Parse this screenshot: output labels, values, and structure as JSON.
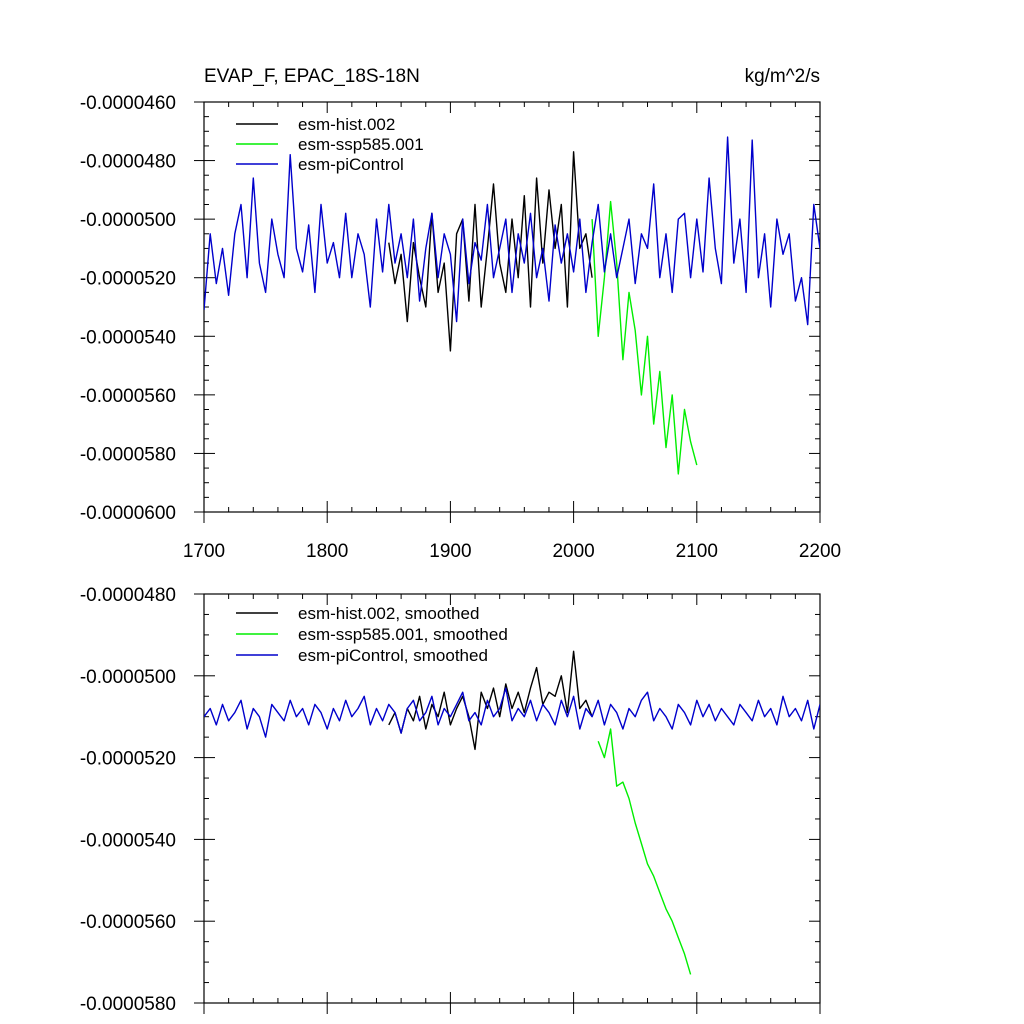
{
  "colors": {
    "hist": "#000000",
    "ssp": "#00ee00",
    "pi": "#0000cc"
  },
  "chart_data": [
    {
      "type": "line",
      "title": "EVAP_F, EPAC_18S-18N",
      "units_label": "kg/m^2/s",
      "xlim": [
        1700,
        2200
      ],
      "ylim": [
        -6e-05,
        -4.6e-05
      ],
      "xticks": [
        1700,
        1800,
        1900,
        2000,
        2100,
        2200
      ],
      "xtick_labels": [
        "1700",
        "1800",
        "1900",
        "2000",
        "2100",
        "2200"
      ],
      "yticks": [
        -4.6e-05,
        -4.8e-05,
        -5e-05,
        -5.2e-05,
        -5.4e-05,
        -5.6e-05,
        -5.8e-05,
        -6e-05
      ],
      "ytick_labels": [
        "-0.0000460",
        "-0.0000480",
        "-0.0000500",
        "-0.0000520",
        "-0.0000540",
        "-0.0000560",
        "-0.0000580",
        "-0.0000600"
      ],
      "legend_position": "top-left",
      "grid": false,
      "series": [
        {
          "name": "esm-hist.002",
          "color": "#000000",
          "x_start": 1850,
          "x_step": 5,
          "values": [
            -5.08e-05,
            -5.22e-05,
            -5.12e-05,
            -5.35e-05,
            -5.08e-05,
            -5.2e-05,
            -5.3e-05,
            -4.98e-05,
            -5.25e-05,
            -5.15e-05,
            -5.45e-05,
            -5.05e-05,
            -5e-05,
            -5.28e-05,
            -4.95e-05,
            -5.3e-05,
            -5.1e-05,
            -4.88e-05,
            -5.15e-05,
            -5.25e-05,
            -5e-05,
            -5.2e-05,
            -4.92e-05,
            -5.3e-05,
            -4.86e-05,
            -5.15e-05,
            -4.9e-05,
            -5.1e-05,
            -4.95e-05,
            -5.3e-05,
            -4.77e-05,
            -5.1e-05,
            -5.05e-05,
            -5.2e-05
          ]
        },
        {
          "name": "esm-ssp585.001",
          "color": "#00ee00",
          "x_start": 2015,
          "x_step": 5,
          "values": [
            -5e-05,
            -5.4e-05,
            -5.2e-05,
            -4.94e-05,
            -5.15e-05,
            -5.48e-05,
            -5.25e-05,
            -5.38e-05,
            -5.6e-05,
            -5.4e-05,
            -5.7e-05,
            -5.52e-05,
            -5.78e-05,
            -5.6e-05,
            -5.87e-05,
            -5.65e-05,
            -5.76e-05,
            -5.84e-05
          ]
        },
        {
          "name": "esm-piControl",
          "color": "#0000cc",
          "x_start": 1700,
          "x_step": 5,
          "values": [
            -5.31e-05,
            -5.05e-05,
            -5.22e-05,
            -5.1e-05,
            -5.26e-05,
            -5.05e-05,
            -4.95e-05,
            -5.2e-05,
            -4.86e-05,
            -5.15e-05,
            -5.25e-05,
            -5e-05,
            -5.12e-05,
            -5.2e-05,
            -4.78e-05,
            -5.1e-05,
            -5.18e-05,
            -5.02e-05,
            -5.25e-05,
            -4.95e-05,
            -5.15e-05,
            -5.08e-05,
            -5.2e-05,
            -4.98e-05,
            -5.2e-05,
            -5.05e-05,
            -5.12e-05,
            -5.3e-05,
            -5e-05,
            -5.18e-05,
            -4.95e-05,
            -5.15e-05,
            -5.05e-05,
            -5.2e-05,
            -5e-05,
            -5.28e-05,
            -5.1e-05,
            -4.98e-05,
            -5.2e-05,
            -5.05e-05,
            -5.12e-05,
            -5.35e-05,
            -5e-05,
            -5.22e-05,
            -5.08e-05,
            -5.14e-05,
            -4.95e-05,
            -5.2e-05,
            -5.1e-05,
            -5e-05,
            -5.25e-05,
            -5.05e-05,
            -5.15e-05,
            -4.98e-05,
            -5.2e-05,
            -5.1e-05,
            -5.28e-05,
            -5.02e-05,
            -5.15e-05,
            -5.05e-05,
            -5.18e-05,
            -5e-05,
            -5.25e-05,
            -5.08e-05,
            -4.95e-05,
            -5.18e-05,
            -5.05e-05,
            -5.2e-05,
            -5.1e-05,
            -5e-05,
            -5.22e-05,
            -5.05e-05,
            -5.1e-05,
            -4.88e-05,
            -5.2e-05,
            -5.05e-05,
            -5.25e-05,
            -5e-05,
            -4.98e-05,
            -5.2e-05,
            -5e-05,
            -5.18e-05,
            -4.86e-05,
            -5.1e-05,
            -5.22e-05,
            -4.72e-05,
            -5.15e-05,
            -5e-05,
            -5.25e-05,
            -4.73e-05,
            -5.2e-05,
            -5.05e-05,
            -5.3e-05,
            -5e-05,
            -5.12e-05,
            -5.05e-05,
            -5.28e-05,
            -5.2e-05,
            -5.36e-05,
            -4.95e-05,
            -5.1e-05
          ]
        }
      ]
    },
    {
      "type": "line",
      "title": "",
      "xlim": [
        1700,
        2200
      ],
      "ylim": [
        -5.8e-05,
        -4.8e-05
      ],
      "xticks": [
        1700,
        1800,
        1900,
        2000,
        2100,
        2200
      ],
      "yticks": [
        -4.8e-05,
        -5e-05,
        -5.2e-05,
        -5.4e-05,
        -5.6e-05,
        -5.8e-05
      ],
      "ytick_labels": [
        "-0.0000480",
        "-0.0000500",
        "-0.0000520",
        "-0.0000540",
        "-0.0000560",
        "-0.0000580"
      ],
      "legend_position": "top-left",
      "grid": false,
      "series": [
        {
          "name": "esm-hist.002, smoothed",
          "color": "#000000",
          "x_start": 1850,
          "x_step": 5,
          "values": [
            -5.12e-05,
            -5.09e-05,
            -5.14e-05,
            -5.08e-05,
            -5.11e-05,
            -5.05e-05,
            -5.13e-05,
            -5.07e-05,
            -5.1e-05,
            -5.04e-05,
            -5.12e-05,
            -5.08e-05,
            -5.05e-05,
            -5.1e-05,
            -5.18e-05,
            -5.04e-05,
            -5.08e-05,
            -5.03e-05,
            -5.1e-05,
            -5.02e-05,
            -5.08e-05,
            -5.04e-05,
            -5.09e-05,
            -5.03e-05,
            -4.98e-05,
            -5.07e-05,
            -5.04e-05,
            -5.05e-05,
            -5e-05,
            -5.09e-05,
            -4.94e-05,
            -5.08e-05,
            -5.06e-05,
            -5.1e-05
          ]
        },
        {
          "name": "esm-ssp585.001, smoothed",
          "color": "#00ee00",
          "x_start": 2020,
          "x_step": 5,
          "values": [
            -5.16e-05,
            -5.2e-05,
            -5.13e-05,
            -5.27e-05,
            -5.26e-05,
            -5.3e-05,
            -5.36e-05,
            -5.41e-05,
            -5.46e-05,
            -5.49e-05,
            -5.53e-05,
            -5.57e-05,
            -5.6e-05,
            -5.64e-05,
            -5.68e-05,
            -5.73e-05
          ]
        },
        {
          "name": "esm-piControl, smoothed",
          "color": "#0000cc",
          "x_start": 1700,
          "x_step": 5,
          "values": [
            -5.1e-05,
            -5.08e-05,
            -5.12e-05,
            -5.07e-05,
            -5.11e-05,
            -5.09e-05,
            -5.06e-05,
            -5.13e-05,
            -5.08e-05,
            -5.1e-05,
            -5.15e-05,
            -5.07e-05,
            -5.09e-05,
            -5.11e-05,
            -5.06e-05,
            -5.1e-05,
            -5.08e-05,
            -5.12e-05,
            -5.07e-05,
            -5.09e-05,
            -5.13e-05,
            -5.08e-05,
            -5.11e-05,
            -5.06e-05,
            -5.1e-05,
            -5.08e-05,
            -5.05e-05,
            -5.12e-05,
            -5.08e-05,
            -5.11e-05,
            -5.07e-05,
            -5.09e-05,
            -5.14e-05,
            -5.08e-05,
            -5.06e-05,
            -5.11e-05,
            -5.09e-05,
            -5.05e-05,
            -5.12e-05,
            -5.08e-05,
            -5.1e-05,
            -5.07e-05,
            -5.04e-05,
            -5.11e-05,
            -5.09e-05,
            -5.12e-05,
            -5.06e-05,
            -5.1e-05,
            -5.08e-05,
            -5.03e-05,
            -5.11e-05,
            -5.08e-05,
            -5.1e-05,
            -5.06e-05,
            -5.11e-05,
            -5.07e-05,
            -5.09e-05,
            -5.12e-05,
            -5.06e-05,
            -5.1e-05,
            -5.05e-05,
            -5.13e-05,
            -5.08e-05,
            -5.1e-05,
            -5.06e-05,
            -5.12e-05,
            -5.07e-05,
            -5.09e-05,
            -5.13e-05,
            -5.08e-05,
            -5.1e-05,
            -5.06e-05,
            -5.04e-05,
            -5.11e-05,
            -5.08e-05,
            -5.1e-05,
            -5.13e-05,
            -5.07e-05,
            -5.09e-05,
            -5.12e-05,
            -5.06e-05,
            -5.1e-05,
            -5.07e-05,
            -5.11e-05,
            -5.08e-05,
            -5.1e-05,
            -5.12e-05,
            -5.07e-05,
            -5.09e-05,
            -5.11e-05,
            -5.06e-05,
            -5.1e-05,
            -5.08e-05,
            -5.12e-05,
            -5.05e-05,
            -5.1e-05,
            -5.08e-05,
            -5.11e-05,
            -5.06e-05,
            -5.13e-05,
            -5.07e-05
          ]
        }
      ]
    }
  ]
}
